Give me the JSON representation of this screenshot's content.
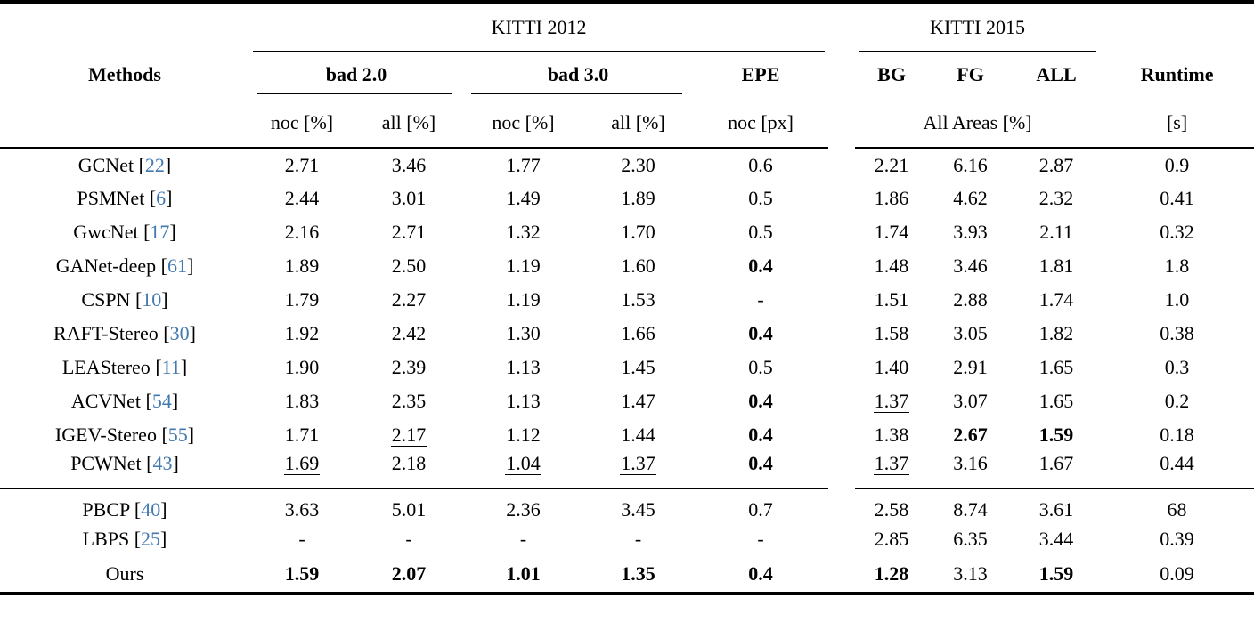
{
  "colors": {
    "citation_blue": "#4279b0",
    "text": "#000000",
    "background": "#ffffff"
  },
  "title_groups": {
    "kitti2012": "KITTI 2012",
    "kitti2015": "KITTI 2015"
  },
  "headers": {
    "methods": "Methods",
    "bad20": "bad 2.0",
    "bad30": "bad 3.0",
    "epe": "EPE",
    "bg": "BG",
    "fg": "FG",
    "all": "ALL",
    "runtime": "Runtime",
    "noc_pct": "noc [%]",
    "all_pct": "all [%]",
    "noc_px": "noc [px]",
    "all_areas": "All Areas [%]",
    "seconds": "[s]"
  },
  "main_rows": [
    {
      "method": "GCNet",
      "cite": "22",
      "values": [
        {
          "t": "2.71"
        },
        {
          "t": "3.46"
        },
        {
          "t": "1.77"
        },
        {
          "t": "2.30"
        },
        {
          "t": "0.6"
        },
        {
          "t": "2.21"
        },
        {
          "t": "6.16"
        },
        {
          "t": "2.87"
        },
        {
          "t": "0.9"
        }
      ]
    },
    {
      "method": "PSMNet",
      "cite": "6",
      "values": [
        {
          "t": "2.44"
        },
        {
          "t": "3.01"
        },
        {
          "t": "1.49"
        },
        {
          "t": "1.89"
        },
        {
          "t": "0.5"
        },
        {
          "t": "1.86"
        },
        {
          "t": "4.62"
        },
        {
          "t": "2.32"
        },
        {
          "t": "0.41"
        }
      ]
    },
    {
      "method": "GwcNet",
      "cite": "17",
      "values": [
        {
          "t": "2.16"
        },
        {
          "t": "2.71"
        },
        {
          "t": "1.32"
        },
        {
          "t": "1.70"
        },
        {
          "t": "0.5"
        },
        {
          "t": "1.74"
        },
        {
          "t": "3.93"
        },
        {
          "t": "2.11"
        },
        {
          "t": "0.32"
        }
      ]
    },
    {
      "method": "GANet-deep",
      "cite": "61",
      "values": [
        {
          "t": "1.89"
        },
        {
          "t": "2.50"
        },
        {
          "t": "1.19"
        },
        {
          "t": "1.60"
        },
        {
          "t": "0.4",
          "b": true
        },
        {
          "t": "1.48"
        },
        {
          "t": "3.46"
        },
        {
          "t": "1.81"
        },
        {
          "t": "1.8"
        }
      ]
    },
    {
      "method": "CSPN",
      "cite": "10",
      "values": [
        {
          "t": "1.79"
        },
        {
          "t": "2.27"
        },
        {
          "t": "1.19"
        },
        {
          "t": "1.53"
        },
        {
          "t": "-"
        },
        {
          "t": "1.51"
        },
        {
          "t": "2.88",
          "u": true
        },
        {
          "t": "1.74"
        },
        {
          "t": "1.0"
        }
      ]
    },
    {
      "method": "RAFT-Stereo",
      "cite": "30",
      "values": [
        {
          "t": "1.92"
        },
        {
          "t": "2.42"
        },
        {
          "t": "1.30"
        },
        {
          "t": "1.66"
        },
        {
          "t": "0.4",
          "b": true
        },
        {
          "t": "1.58"
        },
        {
          "t": "3.05"
        },
        {
          "t": "1.82"
        },
        {
          "t": "0.38"
        }
      ]
    },
    {
      "method": "LEAStereo",
      "cite": "11",
      "values": [
        {
          "t": "1.90"
        },
        {
          "t": "2.39"
        },
        {
          "t": "1.13"
        },
        {
          "t": "1.45"
        },
        {
          "t": "0.5"
        },
        {
          "t": "1.40"
        },
        {
          "t": "2.91"
        },
        {
          "t": "1.65"
        },
        {
          "t": "0.3"
        }
      ]
    },
    {
      "method": "ACVNet",
      "cite": "54",
      "values": [
        {
          "t": "1.83"
        },
        {
          "t": "2.35"
        },
        {
          "t": "1.13"
        },
        {
          "t": "1.47"
        },
        {
          "t": "0.4",
          "b": true
        },
        {
          "t": "1.37",
          "u": true
        },
        {
          "t": "3.07"
        },
        {
          "t": "1.65"
        },
        {
          "t": "0.2"
        }
      ]
    },
    {
      "method": "IGEV-Stereo",
      "cite": "55",
      "values": [
        {
          "t": "1.71"
        },
        {
          "t": "2.17",
          "u": true
        },
        {
          "t": "1.12"
        },
        {
          "t": "1.44"
        },
        {
          "t": "0.4",
          "b": true
        },
        {
          "t": "1.38"
        },
        {
          "t": "2.67",
          "b": true
        },
        {
          "t": "1.59",
          "b": true
        },
        {
          "t": "0.18"
        }
      ]
    },
    {
      "method": "PCWNet",
      "cite": "43",
      "values": [
        {
          "t": "1.69",
          "u": true
        },
        {
          "t": "2.18"
        },
        {
          "t": "1.04",
          "u": true
        },
        {
          "t": "1.37",
          "u": true
        },
        {
          "t": "0.4",
          "b": true
        },
        {
          "t": "1.37",
          "u": true
        },
        {
          "t": "3.16"
        },
        {
          "t": "1.67"
        },
        {
          "t": "0.44"
        }
      ]
    }
  ],
  "bottom_rows": [
    {
      "method": "PBCP",
      "cite": "40",
      "values": [
        {
          "t": "3.63"
        },
        {
          "t": "5.01"
        },
        {
          "t": "2.36"
        },
        {
          "t": "3.45"
        },
        {
          "t": "0.7"
        },
        {
          "t": "2.58"
        },
        {
          "t": "8.74"
        },
        {
          "t": "3.61"
        },
        {
          "t": "68"
        }
      ]
    },
    {
      "method": "LBPS",
      "cite": "25",
      "values": [
        {
          "t": "-"
        },
        {
          "t": "-"
        },
        {
          "t": "-"
        },
        {
          "t": "-"
        },
        {
          "t": "-"
        },
        {
          "t": "2.85"
        },
        {
          "t": "6.35"
        },
        {
          "t": "3.44"
        },
        {
          "t": "0.39"
        }
      ]
    },
    {
      "method": "Ours",
      "cite": null,
      "values": [
        {
          "t": "1.59",
          "b": true
        },
        {
          "t": "2.07",
          "b": true
        },
        {
          "t": "1.01",
          "b": true
        },
        {
          "t": "1.35",
          "b": true
        },
        {
          "t": "0.4",
          "b": true
        },
        {
          "t": "1.28",
          "b": true
        },
        {
          "t": "3.13"
        },
        {
          "t": "1.59",
          "b": true
        },
        {
          "t": "0.09"
        }
      ]
    }
  ]
}
